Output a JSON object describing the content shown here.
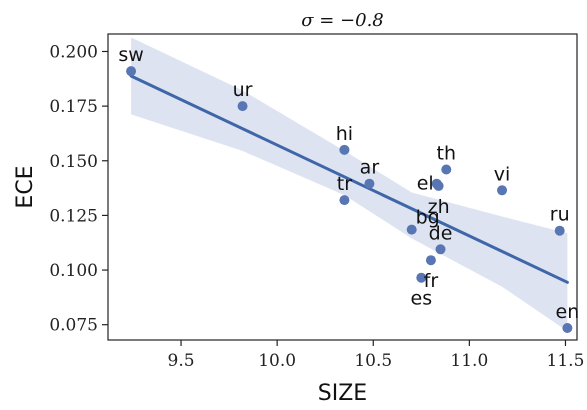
{
  "chart_data": {
    "type": "scatter",
    "title": "σ = −0.8",
    "xlabel": "SIZE",
    "ylabel": "ECE",
    "xlim": [
      9.12,
      11.56
    ],
    "ylim": [
      0.068,
      0.208
    ],
    "xticks": [
      9.5,
      10.0,
      10.5,
      11.0,
      11.5
    ],
    "xtick_labels": [
      "9.5",
      "10.0",
      "10.5",
      "11.0",
      "11.5"
    ],
    "yticks": [
      0.075,
      0.1,
      0.125,
      0.15,
      0.175,
      0.2
    ],
    "ytick_labels": [
      "0.075",
      "0.100",
      "0.125",
      "0.150",
      "0.175",
      "0.200"
    ],
    "grid": false,
    "colors": {
      "points": "#5875b4",
      "line": "#3f66a8",
      "band": "#dde3f1"
    },
    "points": [
      {
        "label": "sw",
        "x": 9.24,
        "y": 0.191,
        "label_pos": "above"
      },
      {
        "label": "ur",
        "x": 9.82,
        "y": 0.175,
        "label_pos": "above"
      },
      {
        "label": "hi",
        "x": 10.35,
        "y": 0.155,
        "label_pos": "above"
      },
      {
        "label": "ar",
        "x": 10.48,
        "y": 0.1395,
        "label_pos": "above"
      },
      {
        "label": "tr",
        "x": 10.35,
        "y": 0.132,
        "label_pos": "above"
      },
      {
        "label": "th",
        "x": 10.88,
        "y": 0.146,
        "label_pos": "above"
      },
      {
        "label": "el",
        "x": 10.83,
        "y": 0.1395,
        "label_pos": "left"
      },
      {
        "label": "zh",
        "x": 10.84,
        "y": 0.1385,
        "label_pos": "below"
      },
      {
        "label": "vi",
        "x": 11.17,
        "y": 0.1365,
        "label_pos": "above"
      },
      {
        "label": "bg",
        "x": 10.7,
        "y": 0.1185,
        "label_pos": "above-right"
      },
      {
        "label": "de",
        "x": 10.85,
        "y": 0.1095,
        "label_pos": "above"
      },
      {
        "label": "fr",
        "x": 10.8,
        "y": 0.1045,
        "label_pos": "below"
      },
      {
        "label": "es",
        "x": 10.75,
        "y": 0.0965,
        "label_pos": "below"
      },
      {
        "label": "ru",
        "x": 11.47,
        "y": 0.118,
        "label_pos": "above"
      },
      {
        "label": "en",
        "x": 11.51,
        "y": 0.0735,
        "label_pos": "above"
      }
    ],
    "regression": {
      "x": [
        9.24,
        11.51
      ],
      "y": [
        0.1888,
        0.0944
      ]
    },
    "confidence_band": {
      "x": [
        9.24,
        9.82,
        10.35,
        10.7,
        11.17,
        11.51
      ],
      "upper": [
        0.2064,
        0.1822,
        0.1545,
        0.1355,
        0.1245,
        0.1168
      ],
      "lower": [
        0.1712,
        0.1545,
        0.1343,
        0.1145,
        0.0924,
        0.072
      ]
    }
  }
}
